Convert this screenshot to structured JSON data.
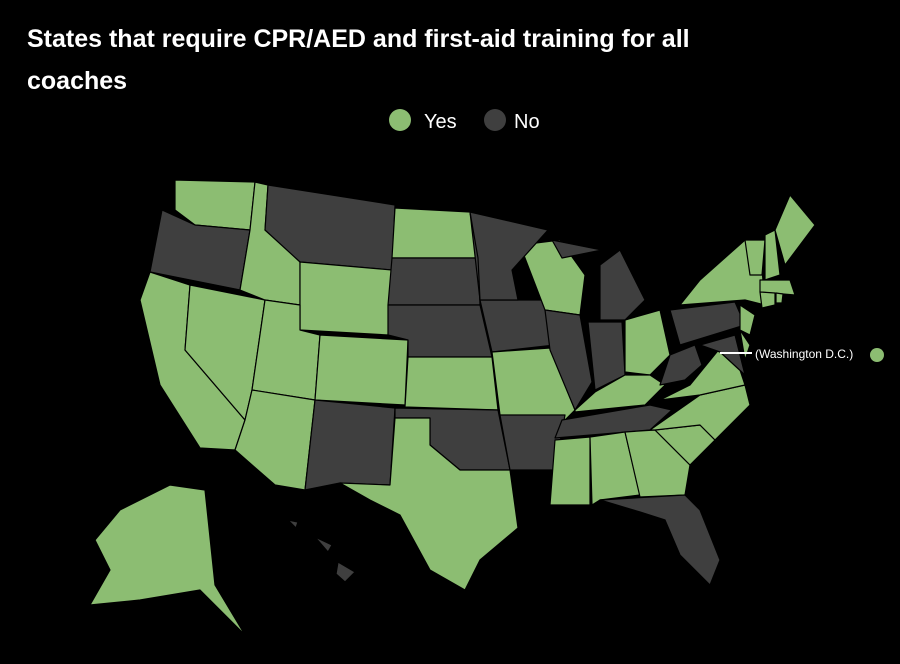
{
  "title": "States that require CPR/AED and first-aid training for all coaches",
  "legend": [
    {
      "label": "Yes",
      "color": "#8cbd72"
    },
    {
      "label": "No",
      "color": "#3f3f3f"
    }
  ],
  "annotation": "(Washington D.C.)",
  "annotation_status": "Yes",
  "regions": [
    "Yes",
    "No",
    "Yes",
    "Yes",
    "Yes",
    "No",
    "Yes",
    "Yes",
    "Yes",
    "Yes",
    "No",
    "Yes",
    "No",
    "No",
    "Yes",
    "No",
    "Yes",
    "No",
    "No",
    "Yes",
    "No",
    "Yes",
    "No",
    "No",
    "No",
    "Yes",
    "Yes",
    "No",
    "Yes",
    "Yes",
    "Yes",
    "No",
    "Yes",
    "Yes",
    "Yes",
    "No",
    "No",
    "No",
    "Yes",
    "Yes",
    "Yes",
    "Yes",
    "Yes",
    "Yes",
    "Yes",
    "Yes",
    "Yes",
    "Yes",
    "No",
    "No"
  ]
}
